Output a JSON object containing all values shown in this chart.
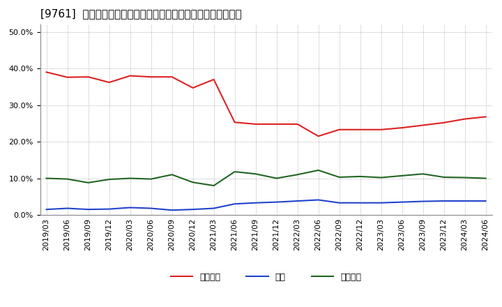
{
  "title": "[9761]  売上債権、在庫、買入債務の総資産に対する比率の推移",
  "dates": [
    "2019/03",
    "2019/06",
    "2019/09",
    "2019/12",
    "2020/03",
    "2020/06",
    "2020/09",
    "2020/12",
    "2021/03",
    "2021/06",
    "2021/09",
    "2021/12",
    "2022/03",
    "2022/06",
    "2022/09",
    "2022/12",
    "2023/03",
    "2023/06",
    "2023/09",
    "2023/12",
    "2024/03",
    "2024/06"
  ],
  "receivables": [
    0.39,
    0.376,
    0.377,
    0.362,
    0.38,
    0.377,
    0.377,
    0.347,
    0.37,
    0.253,
    0.248,
    0.248,
    0.248,
    0.215,
    0.233,
    0.233,
    0.233,
    0.238,
    0.245,
    0.252,
    0.262,
    0.268
  ],
  "inventory": [
    0.015,
    0.018,
    0.015,
    0.016,
    0.02,
    0.018,
    0.013,
    0.015,
    0.018,
    0.03,
    0.033,
    0.035,
    0.038,
    0.041,
    0.033,
    0.033,
    0.033,
    0.035,
    0.037,
    0.038,
    0.038,
    0.038
  ],
  "payables": [
    0.1,
    0.098,
    0.088,
    0.097,
    0.1,
    0.098,
    0.11,
    0.089,
    0.08,
    0.118,
    0.112,
    0.1,
    0.11,
    0.122,
    0.103,
    0.105,
    0.102,
    0.107,
    0.112,
    0.103,
    0.102,
    0.1
  ],
  "receivables_color": "#dd2222",
  "inventory_color": "#2244cc",
  "payables_color": "#226622",
  "legend_receivables": "売上債権",
  "legend_inventory": "在庫",
  "legend_payables": "買入債務",
  "ylim": [
    0.0,
    0.52
  ],
  "yticks": [
    0.0,
    0.1,
    0.2,
    0.3,
    0.4,
    0.5
  ],
  "bg_color": "#ffffff",
  "grid_color": "#999999",
  "title_fontsize": 11,
  "tick_fontsize": 8,
  "legend_fontsize": 9
}
